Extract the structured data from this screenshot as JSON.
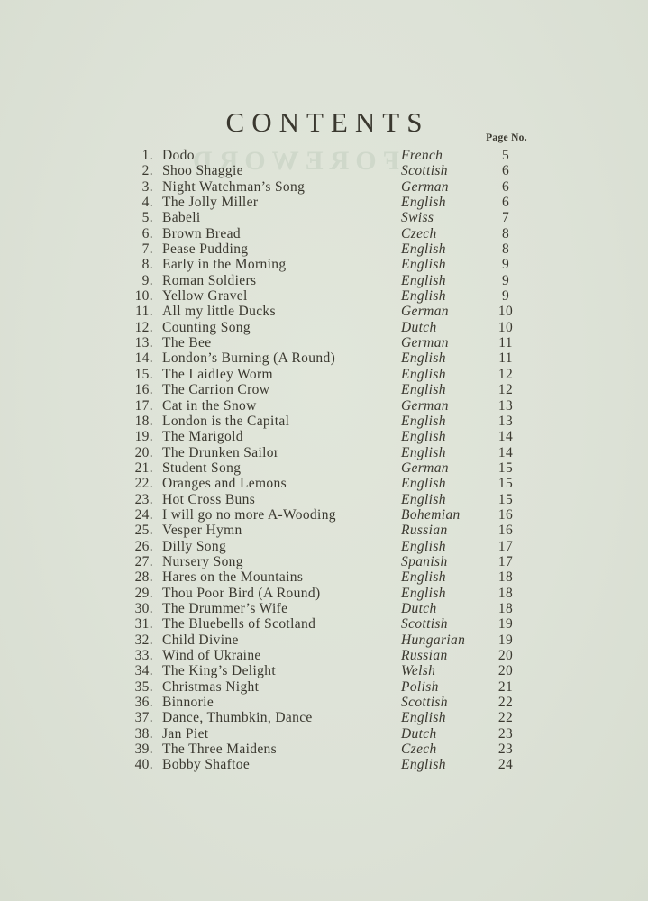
{
  "paper_color": "#dde2d7",
  "ink_color": "#3a382f",
  "page": {
    "title": "CONTENTS",
    "page_no_header": "Page No.",
    "ghost_text": "FOREWORD"
  },
  "entries": [
    {
      "no": "1.",
      "title": "Dodo",
      "language": "French",
      "page": "5"
    },
    {
      "no": "2.",
      "title": "Shoo Shaggie",
      "language": "Scottish",
      "page": "6"
    },
    {
      "no": "3.",
      "title": "Night Watchman’s Song",
      "language": "German",
      "page": "6"
    },
    {
      "no": "4.",
      "title": "The Jolly Miller",
      "language": "English",
      "page": "6"
    },
    {
      "no": "5.",
      "title": "Babeli",
      "language": "Swiss",
      "page": "7"
    },
    {
      "no": "6.",
      "title": "Brown Bread",
      "language": "Czech",
      "page": "8"
    },
    {
      "no": "7.",
      "title": "Pease Pudding",
      "language": "English",
      "page": "8"
    },
    {
      "no": "8.",
      "title": "Early in the Morning",
      "language": "English",
      "page": "9"
    },
    {
      "no": "9.",
      "title": "Roman Soldiers",
      "language": "English",
      "page": "9"
    },
    {
      "no": "10.",
      "title": "Yellow Gravel",
      "language": "English",
      "page": "9"
    },
    {
      "no": "11.",
      "title": "All my little Ducks",
      "language": "German",
      "page": "10"
    },
    {
      "no": "12.",
      "title": "Counting Song",
      "language": "Dutch",
      "page": "10"
    },
    {
      "no": "13.",
      "title": "The Bee",
      "language": "German",
      "page": "11"
    },
    {
      "no": "14.",
      "title": "London’s Burning (A Round)",
      "language": "English",
      "page": "11"
    },
    {
      "no": "15.",
      "title": "The Laidley Worm",
      "language": "English",
      "page": "12"
    },
    {
      "no": "16.",
      "title": "The Carrion Crow",
      "language": "English",
      "page": "12"
    },
    {
      "no": "17.",
      "title": "Cat in the Snow",
      "language": "German",
      "page": "13"
    },
    {
      "no": "18.",
      "title": "London is the Capital",
      "language": "English",
      "page": "13"
    },
    {
      "no": "19.",
      "title": "The Marigold",
      "language": "English",
      "page": "14"
    },
    {
      "no": "20.",
      "title": "The Drunken Sailor",
      "language": "English",
      "page": "14"
    },
    {
      "no": "21.",
      "title": "Student Song",
      "language": "German",
      "page": "15"
    },
    {
      "no": "22.",
      "title": "Oranges and Lemons",
      "language": "English",
      "page": "15"
    },
    {
      "no": "23.",
      "title": "Hot Cross Buns",
      "language": "English",
      "page": "15"
    },
    {
      "no": "24.",
      "title": "I will go no more A-Wooding",
      "language": "Bohemian",
      "page": "16"
    },
    {
      "no": "25.",
      "title": "Vesper Hymn",
      "language": "Russian",
      "page": "16"
    },
    {
      "no": "26.",
      "title": "Dilly Song",
      "language": "English",
      "page": "17"
    },
    {
      "no": "27.",
      "title": "Nursery Song",
      "language": "Spanish",
      "page": "17"
    },
    {
      "no": "28.",
      "title": "Hares on the Mountains",
      "language": "English",
      "page": "18"
    },
    {
      "no": "29.",
      "title": "Thou Poor Bird (A Round)",
      "language": "English",
      "page": "18"
    },
    {
      "no": "30.",
      "title": "The Drummer’s Wife",
      "language": "Dutch",
      "page": "18"
    },
    {
      "no": "31.",
      "title": "The Bluebells of Scotland",
      "language": "Scottish",
      "page": "19"
    },
    {
      "no": "32.",
      "title": "Child Divine",
      "language": "Hungarian",
      "page": "19"
    },
    {
      "no": "33.",
      "title": "Wind of Ukraine",
      "language": "Russian",
      "page": "20"
    },
    {
      "no": "34.",
      "title": "The King’s Delight",
      "language": "Welsh",
      "page": "20"
    },
    {
      "no": "35.",
      "title": "Christmas Night",
      "language": "Polish",
      "page": "21"
    },
    {
      "no": "36.",
      "title": "Binnorie",
      "language": "Scottish",
      "page": "22"
    },
    {
      "no": "37.",
      "title": "Dance, Thumbkin, Dance",
      "language": "English",
      "page": "22"
    },
    {
      "no": "38.",
      "title": "Jan Piet",
      "language": "Dutch",
      "page": "23"
    },
    {
      "no": "39.",
      "title": "The Three Maidens",
      "language": "Czech",
      "page": "23"
    },
    {
      "no": "40.",
      "title": "Bobby Shaftoe",
      "language": "English",
      "page": "24"
    }
  ]
}
